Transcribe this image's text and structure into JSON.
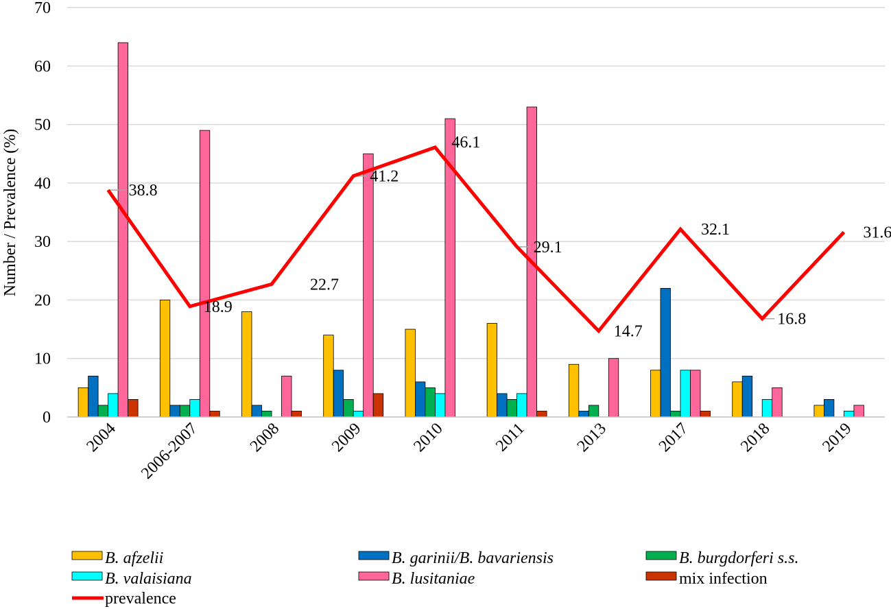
{
  "chart_data": {
    "type": "bar+line",
    "title": "",
    "xlabel": "",
    "ylabel": "Number / Prevalence (%)",
    "ylim": [
      0,
      70
    ],
    "yticks": [
      "0",
      "10",
      "20",
      "30",
      "40",
      "50",
      "60",
      "70"
    ],
    "grid": "horizontal",
    "categories": [
      "2004",
      "2006-2007",
      "2008",
      "2009",
      "2010",
      "2011",
      "2013",
      "2017",
      "2018",
      "2019"
    ],
    "series": [
      {
        "name": "B. afzelii",
        "italic": true,
        "type": "bar",
        "color": "#FFC000",
        "values": [
          5,
          20,
          18,
          14,
          15,
          16,
          9,
          8,
          6,
          2
        ]
      },
      {
        "name": "B. garinii/B. bavariensis",
        "italic": true,
        "type": "bar",
        "color": "#0070C0",
        "values": [
          7,
          2,
          2,
          8,
          6,
          4,
          1,
          22,
          7,
          3
        ]
      },
      {
        "name": "B. burgdorferi s.s.",
        "italic": true,
        "type": "bar",
        "color": "#00B050",
        "values": [
          2,
          2,
          1,
          3,
          5,
          3,
          2,
          1,
          0,
          0
        ]
      },
      {
        "name": "B. valaisiana",
        "italic": true,
        "type": "bar",
        "color": "#00FFFF",
        "values": [
          4,
          3,
          0,
          1,
          4,
          4,
          0,
          8,
          3,
          1
        ]
      },
      {
        "name": "B. lusitaniae",
        "italic": true,
        "type": "bar",
        "color": "#FF6699",
        "values": [
          64,
          49,
          7,
          45,
          51,
          53,
          10,
          8,
          5,
          2
        ]
      },
      {
        "name": "mix infection",
        "italic": false,
        "type": "bar",
        "color": "#CC3300",
        "values": [
          3,
          1,
          1,
          4,
          0,
          1,
          0,
          1,
          0,
          0
        ]
      }
    ],
    "line": {
      "name": "prevalence",
      "color": "#FF0000",
      "values": [
        38.8,
        18.9,
        22.7,
        41.2,
        46.1,
        29.1,
        14.7,
        32.1,
        16.8,
        31.6
      ],
      "labels": [
        "38.8",
        "18.9",
        "22.7",
        "41.2",
        "46.1",
        "29.1",
        "14.7",
        "32.1",
        "16.8",
        "31.6"
      ]
    },
    "legend_position": "bottom"
  }
}
